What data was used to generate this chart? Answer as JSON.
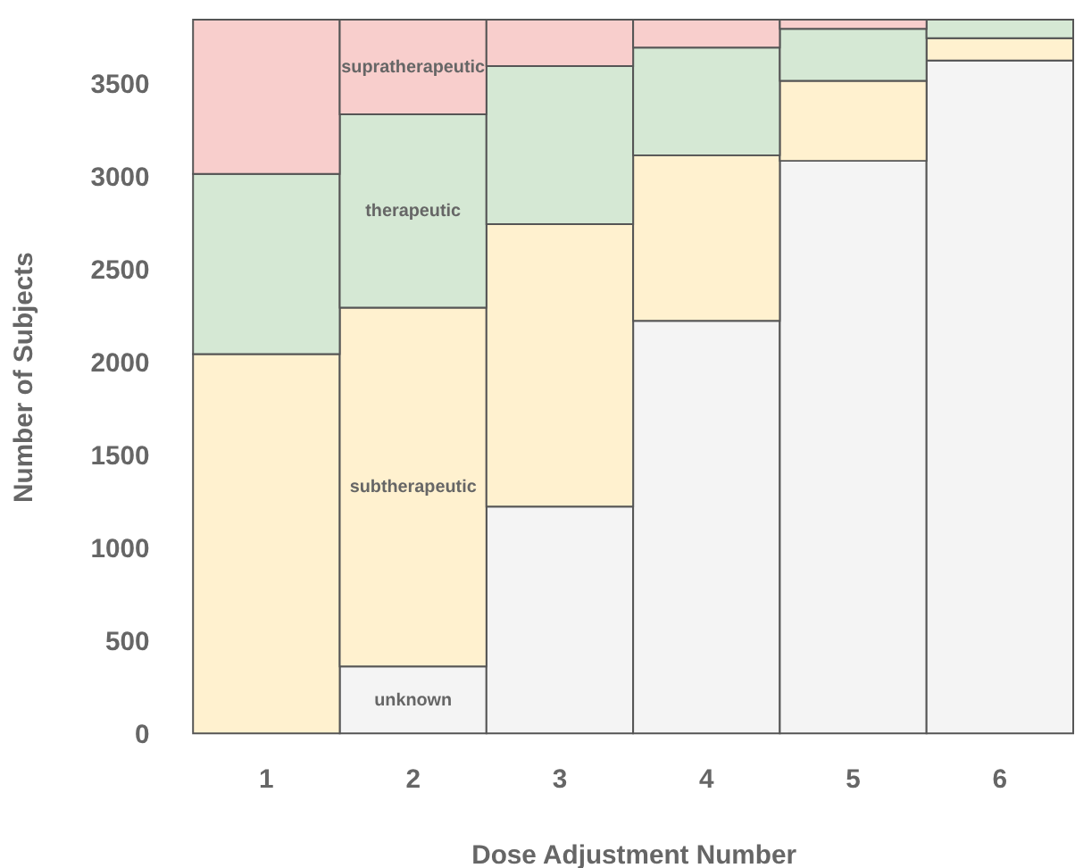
{
  "chart_data": {
    "type": "bar",
    "stacked": true,
    "xlabel": "Dose Adjustment Number",
    "ylabel": "Number of Subjects",
    "categories": [
      "1",
      "2",
      "3",
      "4",
      "5",
      "6"
    ],
    "series": [
      {
        "name": "unknown",
        "color": "#f4f4f4",
        "values": [
          0,
          360,
          1220,
          2220,
          3080,
          3620
        ]
      },
      {
        "name": "subtherapeutic",
        "color": "#fff1cf",
        "values": [
          2040,
          1930,
          1520,
          890,
          430,
          120
        ]
      },
      {
        "name": "therapeutic",
        "color": "#d5e8d4",
        "values": [
          970,
          1040,
          850,
          580,
          280,
          100
        ]
      },
      {
        "name": "supratherapeutic",
        "color": "#f8cecc",
        "values": [
          830,
          510,
          250,
          150,
          50,
          0
        ]
      }
    ],
    "ylim": [
      0,
      3840
    ],
    "yticks": [
      0,
      500,
      1000,
      1500,
      2000,
      2500,
      3000,
      3500
    ],
    "grid": false
  }
}
